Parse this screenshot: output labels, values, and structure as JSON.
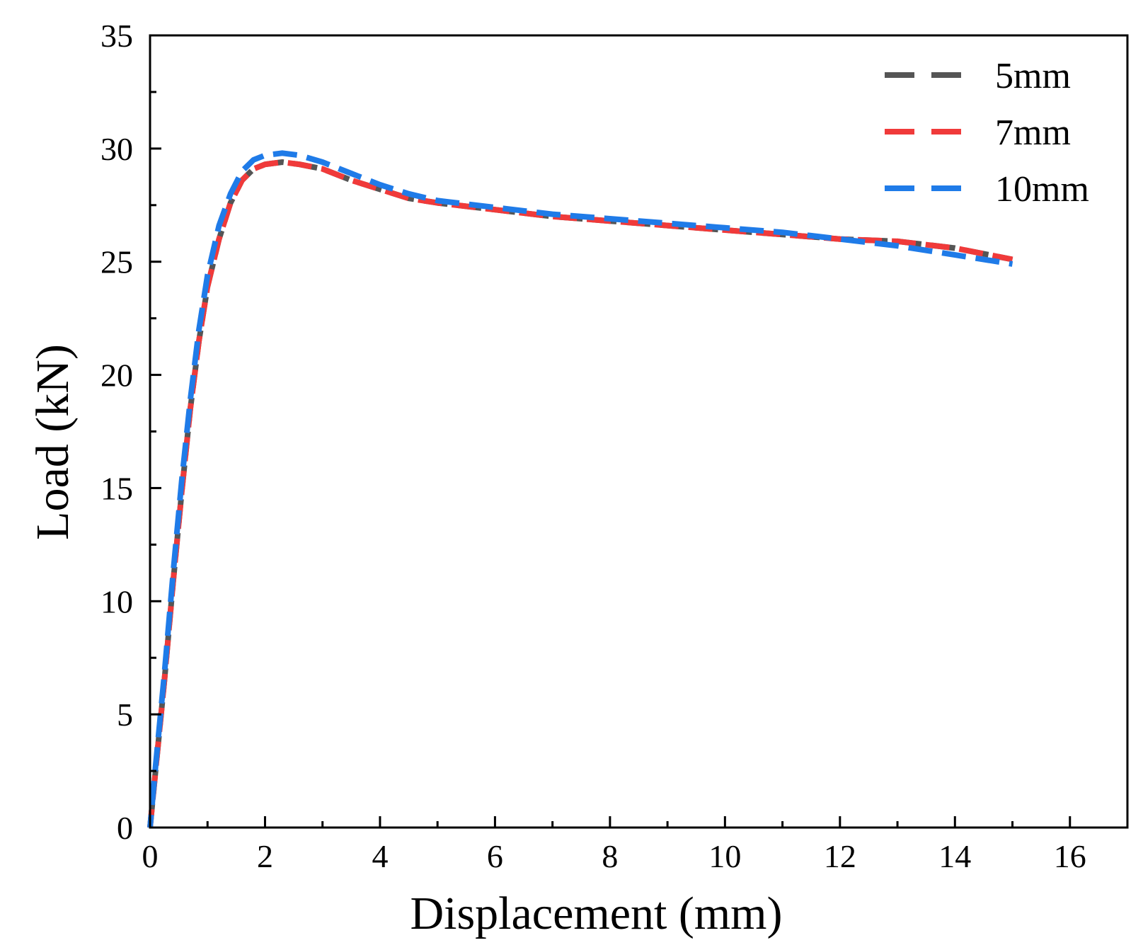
{
  "chart_data": {
    "type": "line",
    "title": "",
    "xlabel": "Displacement (mm)",
    "ylabel": "Load (kN)",
    "xlim": [
      0,
      17
    ],
    "ylim": [
      0,
      35
    ],
    "xticks": [
      0,
      2,
      4,
      6,
      8,
      10,
      12,
      14,
      16
    ],
    "yticks": [
      0,
      5,
      10,
      15,
      20,
      25,
      30,
      35
    ],
    "xticks_minor": [
      1,
      3,
      5,
      7,
      9,
      11,
      13,
      15
    ],
    "yticks_minor": [
      2.5,
      7.5,
      12.5,
      17.5,
      22.5,
      27.5,
      32.5
    ],
    "grid": false,
    "legend_position": "top-right",
    "series": [
      {
        "name": "5mm",
        "color": "#555555",
        "style": "dashed",
        "points": [
          [
            0,
            0
          ],
          [
            0.1,
            2.6
          ],
          [
            0.25,
            6.5
          ],
          [
            0.4,
            10.8
          ],
          [
            0.55,
            14.8
          ],
          [
            0.7,
            18.5
          ],
          [
            0.85,
            21.5
          ],
          [
            1.0,
            23.9
          ],
          [
            1.2,
            26.0
          ],
          [
            1.4,
            27.6
          ],
          [
            1.6,
            28.6
          ],
          [
            1.8,
            29.1
          ],
          [
            2.0,
            29.3
          ],
          [
            2.3,
            29.4
          ],
          [
            2.6,
            29.3
          ],
          [
            3.0,
            29.1
          ],
          [
            3.5,
            28.6
          ],
          [
            4.0,
            28.2
          ],
          [
            4.5,
            27.8
          ],
          [
            5.0,
            27.6
          ],
          [
            6.0,
            27.3
          ],
          [
            7.0,
            27.0
          ],
          [
            8.0,
            26.8
          ],
          [
            9.0,
            26.6
          ],
          [
            10.0,
            26.4
          ],
          [
            11.0,
            26.2
          ],
          [
            12.0,
            26.0
          ],
          [
            13.0,
            25.9
          ],
          [
            14.0,
            25.6
          ],
          [
            15.0,
            25.1
          ]
        ]
      },
      {
        "name": "7mm",
        "color": "#f03a3a",
        "style": "dashed",
        "points": [
          [
            0,
            0
          ],
          [
            0.1,
            2.6
          ],
          [
            0.25,
            6.5
          ],
          [
            0.4,
            10.8
          ],
          [
            0.55,
            14.8
          ],
          [
            0.7,
            18.5
          ],
          [
            0.85,
            21.5
          ],
          [
            1.0,
            23.9
          ],
          [
            1.2,
            26.0
          ],
          [
            1.4,
            27.6
          ],
          [
            1.6,
            28.6
          ],
          [
            1.8,
            29.1
          ],
          [
            2.0,
            29.3
          ],
          [
            2.3,
            29.4
          ],
          [
            2.6,
            29.3
          ],
          [
            3.0,
            29.1
          ],
          [
            3.5,
            28.6
          ],
          [
            4.0,
            28.2
          ],
          [
            4.5,
            27.8
          ],
          [
            5.0,
            27.6
          ],
          [
            6.0,
            27.3
          ],
          [
            7.0,
            27.0
          ],
          [
            8.0,
            26.8
          ],
          [
            9.0,
            26.6
          ],
          [
            10.0,
            26.4
          ],
          [
            11.0,
            26.2
          ],
          [
            12.0,
            26.0
          ],
          [
            13.0,
            25.9
          ],
          [
            14.0,
            25.6
          ],
          [
            15.0,
            25.1
          ]
        ]
      },
      {
        "name": "10mm",
        "color": "#1f7be8",
        "style": "dashed",
        "points": [
          [
            0,
            0
          ],
          [
            0.1,
            2.8
          ],
          [
            0.25,
            6.8
          ],
          [
            0.4,
            11.2
          ],
          [
            0.55,
            15.3
          ],
          [
            0.7,
            18.9
          ],
          [
            0.85,
            22.0
          ],
          [
            1.0,
            24.4
          ],
          [
            1.2,
            26.6
          ],
          [
            1.4,
            28.0
          ],
          [
            1.6,
            29.0
          ],
          [
            1.8,
            29.5
          ],
          [
            2.0,
            29.7
          ],
          [
            2.3,
            29.8
          ],
          [
            2.6,
            29.7
          ],
          [
            3.0,
            29.4
          ],
          [
            3.5,
            28.9
          ],
          [
            4.0,
            28.4
          ],
          [
            4.5,
            28.0
          ],
          [
            5.0,
            27.7
          ],
          [
            6.0,
            27.4
          ],
          [
            7.0,
            27.1
          ],
          [
            8.0,
            26.9
          ],
          [
            9.0,
            26.7
          ],
          [
            10.0,
            26.5
          ],
          [
            11.0,
            26.3
          ],
          [
            12.0,
            26.0
          ],
          [
            13.0,
            25.7
          ],
          [
            14.0,
            25.3
          ],
          [
            15.0,
            24.9
          ]
        ]
      }
    ]
  }
}
